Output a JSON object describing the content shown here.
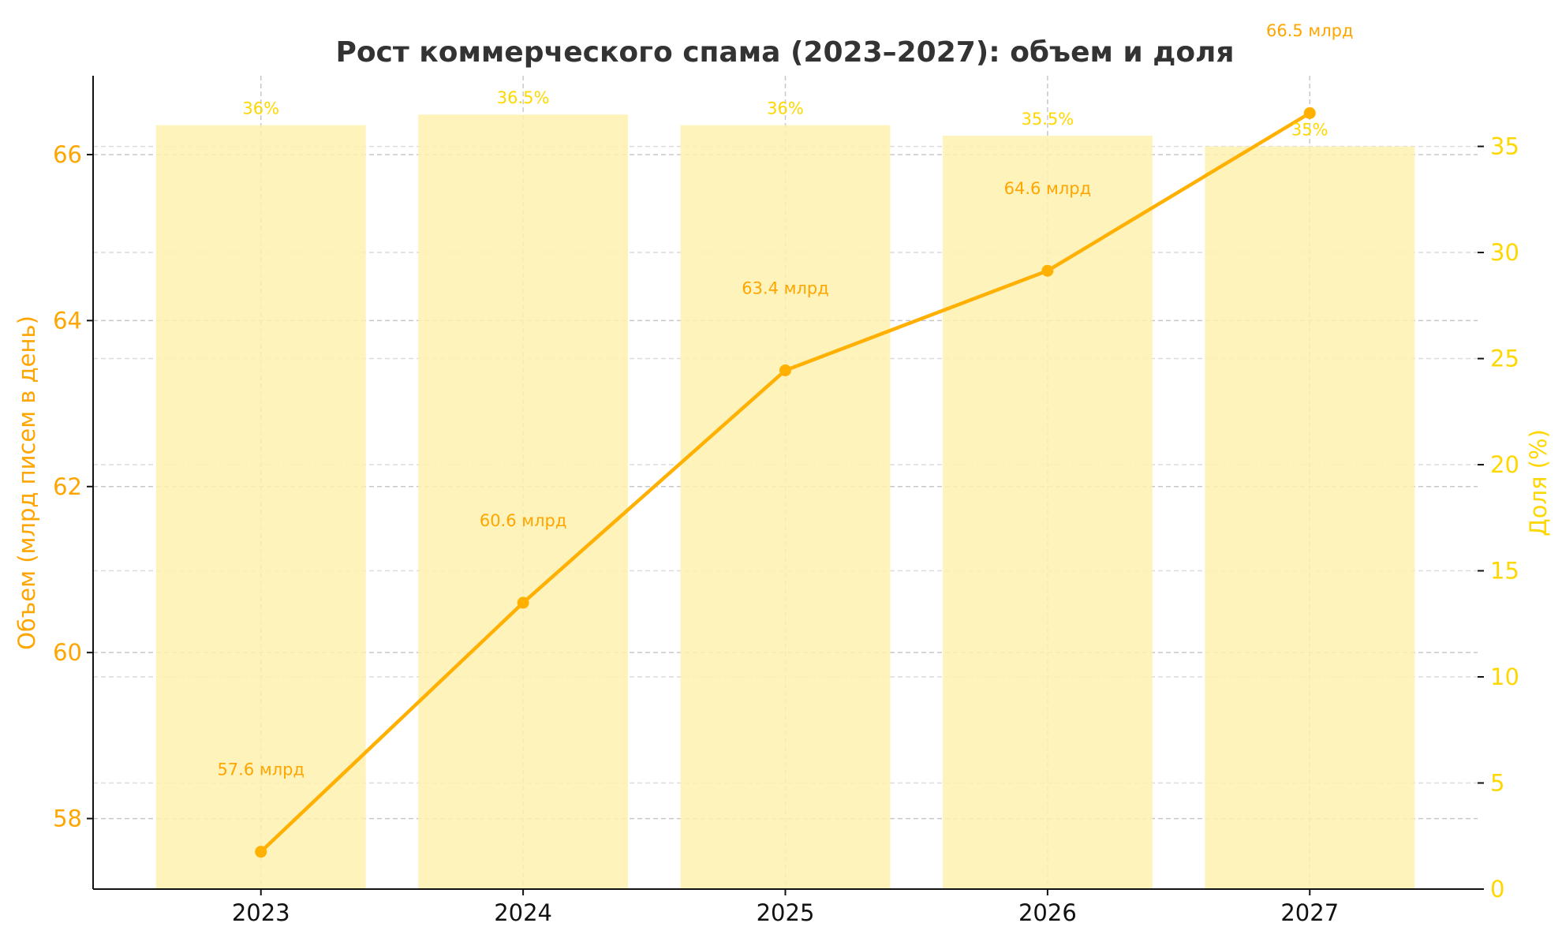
{
  "chart_data": {
    "type": "bar+line",
    "title": "Рост коммерческого спама (2023–2027): объем и доля",
    "categories": [
      "2023",
      "2024",
      "2025",
      "2026",
      "2027"
    ],
    "series": [
      {
        "axis": "left",
        "kind": "line",
        "values": [
          57.6,
          60.6,
          63.4,
          64.6,
          66.5
        ],
        "labels": [
          "57.6 млрд",
          "60.6 млрд",
          "63.4 млрд",
          "64.6 млрд",
          "66.5 млрд"
        ],
        "color": "#FFB000"
      },
      {
        "axis": "right",
        "kind": "bar",
        "values": [
          36,
          36.5,
          36,
          35.5,
          35
        ],
        "labels": [
          "36%",
          "36.5%",
          "36%",
          "35.5%",
          "35%"
        ],
        "color": "#FFF1B0"
      }
    ],
    "ylabel": "Объем (млрд писем в день)",
    "ylabel_right": "Доля (%)",
    "ylim": [
      57.15,
      66.95
    ],
    "ylim_right": [
      0,
      38.33
    ],
    "yticks": [
      58,
      60,
      62,
      64,
      66
    ],
    "yticks_right": [
      0,
      5,
      10,
      15,
      20,
      25,
      30,
      35
    ],
    "left_axis_color": "#FFA500",
    "right_axis_color": "#FFD700",
    "grid": true
  }
}
